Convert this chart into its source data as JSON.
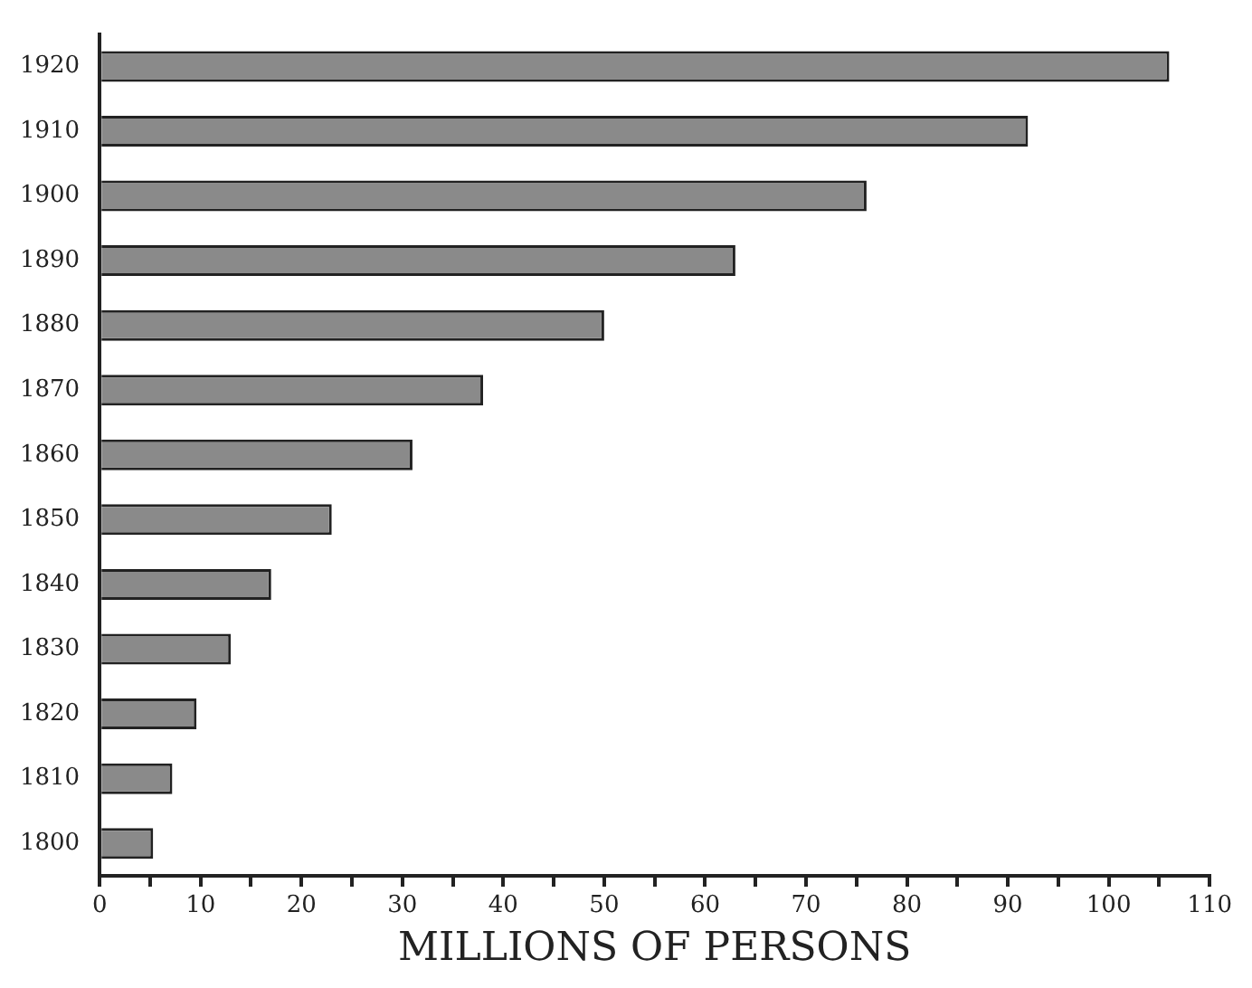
{
  "chart_data": {
    "type": "bar",
    "orientation": "horizontal",
    "xlabel": "MILLIONS OF PERSONS",
    "categories": [
      "1920",
      "1910",
      "1900",
      "1890",
      "1880",
      "1870",
      "1860",
      "1850",
      "1840",
      "1830",
      "1820",
      "1810",
      "1800"
    ],
    "values": [
      106,
      92,
      76,
      63,
      50,
      38,
      31,
      23,
      17,
      13,
      9.6,
      7.2,
      5.3
    ],
    "color": "#8a8a8a",
    "xlim": [
      0,
      110
    ],
    "xticks": [
      0,
      {
        "value": 5,
        "label": null
      },
      10,
      {
        "value": 15,
        "label": null
      },
      20,
      {
        "value": 25,
        "label": null
      },
      30,
      {
        "value": 35,
        "label": null
      },
      40,
      {
        "value": 45,
        "label": null
      },
      50,
      {
        "value": 55,
        "label": null
      },
      60,
      {
        "value": 65,
        "label": null
      },
      70,
      {
        "value": 75,
        "label": null
      },
      80,
      {
        "value": 85,
        "label": null
      },
      90,
      {
        "value": 95,
        "label": null
      },
      100,
      {
        "value": 105,
        "label": null
      },
      110
    ],
    "grid": false,
    "legend": false
  }
}
